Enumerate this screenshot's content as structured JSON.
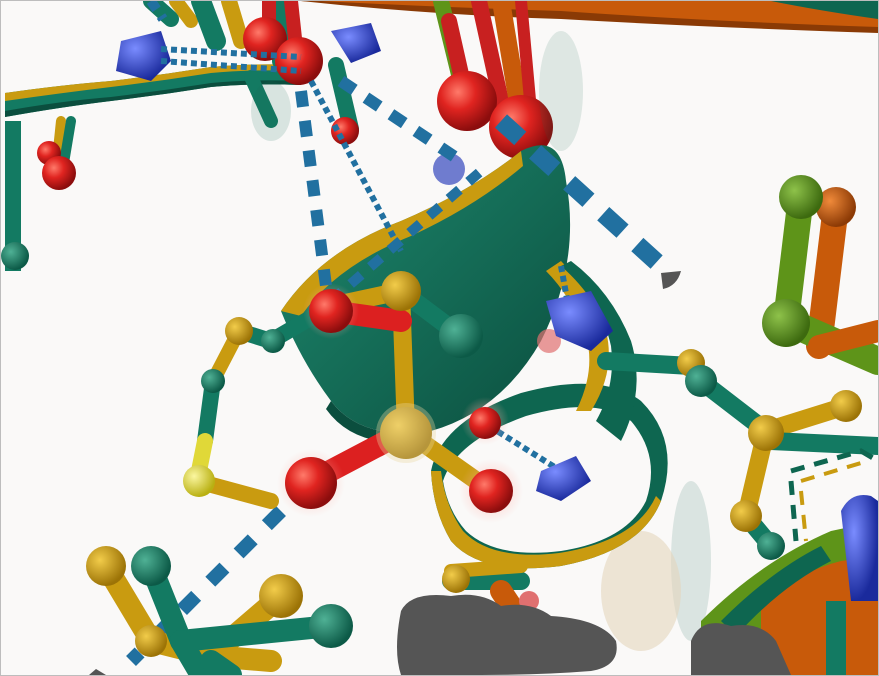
{
  "scene": {
    "background": "#faf9f8",
    "palette": {
      "teal": "#137a62",
      "gold": "#c99b10",
      "orange": "#c85a0a",
      "green": "#5e9419",
      "oxygen": "#dc2020",
      "nitrogen": "#2b3fd1",
      "sulfur": "#e0d838",
      "hbond": "#2170a0",
      "blob": "#555555"
    },
    "icons": [
      "molecule-render"
    ]
  }
}
